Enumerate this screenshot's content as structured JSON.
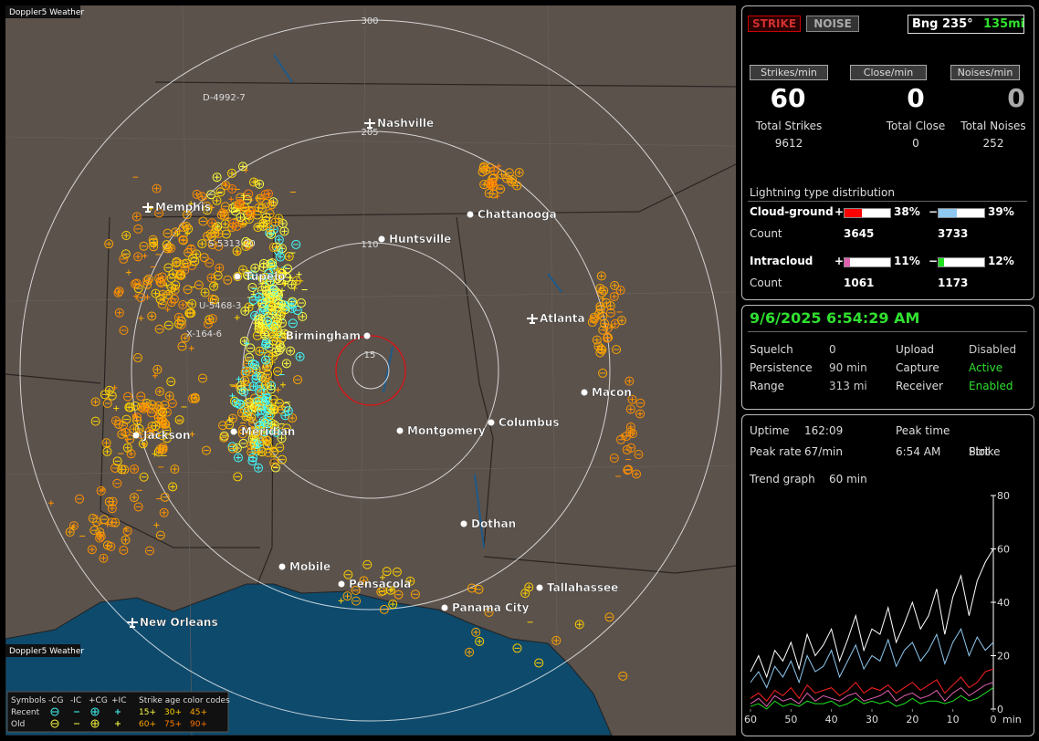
{
  "app_title": "Doppler5 Weather",
  "map": {
    "range_labels": [
      "300",
      "205",
      "110",
      "15"
    ],
    "cities": [
      {
        "name": "Nashville",
        "airport": true
      },
      {
        "name": "Memphis",
        "airport": true
      },
      {
        "name": "Atlanta",
        "airport": true
      },
      {
        "name": "New Orleans",
        "airport": true
      },
      {
        "name": "Chattanooga",
        "airport": false
      },
      {
        "name": "Huntsville",
        "airport": false
      },
      {
        "name": "Tupelo",
        "airport": false
      },
      {
        "name": "Birmingham",
        "airport": false
      },
      {
        "name": "Macon",
        "airport": false
      },
      {
        "name": "Columbus",
        "airport": false
      },
      {
        "name": "Montgomery",
        "airport": false
      },
      {
        "name": "Jackson",
        "airport": false
      },
      {
        "name": "Meridian",
        "airport": false
      },
      {
        "name": "Dothan",
        "airport": false
      },
      {
        "name": "Mobile",
        "airport": false
      },
      {
        "name": "Pensacola",
        "airport": false
      },
      {
        "name": "Panama City",
        "airport": false
      },
      {
        "name": "Tallahassee",
        "airport": false
      }
    ],
    "track_labels": [
      "D-4992-7",
      "S-5313-20",
      "U-5468-3",
      "X-164-6"
    ]
  },
  "legend": {
    "symbols_label": "Symbols",
    "columns": [
      "-CG",
      "-IC",
      "+CG",
      "+IC"
    ],
    "age_label": "Strike age color codes",
    "rows": [
      {
        "name": "Recent",
        "ages": [
          "15+",
          "30+",
          "45+"
        ]
      },
      {
        "name": "Old",
        "ages": [
          "60+",
          "75+",
          "90+"
        ]
      }
    ]
  },
  "status": {
    "buttons": [
      "STRIKE",
      "NOISE"
    ],
    "bearing": "Bng 235°",
    "distance": "135mi"
  },
  "rates": [
    {
      "label": "Strikes/min",
      "value": 60,
      "total_label": "Total Strikes",
      "total": 9612
    },
    {
      "label": "Close/min",
      "value": 0,
      "total_label": "Total Close",
      "total": 0
    },
    {
      "label": "Noises/min",
      "value": 0,
      "total_label": "Total Noises",
      "total": 252
    }
  ],
  "distribution": {
    "title": "Lightning type distribution",
    "count_label": "Count",
    "types": [
      {
        "name": "Cloud-ground",
        "plus": {
          "sign": "+",
          "percent": 38,
          "percent_label": "38%",
          "count": 3645,
          "color": "#ff0000"
        },
        "minus": {
          "sign": "−",
          "percent": 39,
          "percent_label": "39%",
          "count": 3733,
          "color": "#8ec8f0"
        }
      },
      {
        "name": "Intracloud",
        "plus": {
          "sign": "+",
          "percent": 11,
          "percent_label": "11%",
          "count": 1061,
          "color": "#e060b0"
        },
        "minus": {
          "sign": "−",
          "percent": 12,
          "percent_label": "12%",
          "count": 1173,
          "color": "#20e020"
        }
      }
    ]
  },
  "clock": "9/6/2025 6:54:29 AM",
  "settings": [
    {
      "label": "Squelch",
      "value": 0
    },
    {
      "label": "Persistence",
      "value": "90 min"
    },
    {
      "label": "Range",
      "value": "313 mi"
    },
    {
      "label": "Upload",
      "value": "Disabled"
    },
    {
      "label": "Capture",
      "value": "Active"
    },
    {
      "label": "Receiver",
      "value": "Enabled"
    }
  ],
  "stats": [
    {
      "label": "Uptime",
      "value": "162:09"
    },
    {
      "label": "Peak rate",
      "value": "67/min"
    },
    {
      "label": "Peak time",
      "value": "6:54 AM"
    },
    {
      "label": "Plot",
      "value": "Strike"
    },
    {
      "label": "Trend graph",
      "value": "60 min"
    }
  ],
  "chart_data": {
    "type": "line",
    "xlabel": "min",
    "x": [
      60,
      58,
      56,
      54,
      52,
      50,
      48,
      46,
      44,
      42,
      40,
      38,
      36,
      34,
      32,
      30,
      28,
      26,
      24,
      22,
      20,
      18,
      16,
      14,
      12,
      10,
      8,
      6,
      4,
      2,
      0
    ],
    "xlim": [
      60,
      0
    ],
    "xticks": [
      60,
      50,
      40,
      30,
      20,
      10,
      0
    ],
    "ylim": [
      0,
      80
    ],
    "yticks": [
      0,
      20,
      40,
      60,
      80
    ],
    "series": [
      {
        "color": "#ffffff",
        "values": [
          14,
          20,
          12,
          22,
          18,
          25,
          15,
          28,
          20,
          24,
          30,
          18,
          26,
          35,
          22,
          30,
          28,
          38,
          25,
          32,
          40,
          30,
          35,
          45,
          28,
          42,
          50,
          35,
          48,
          55,
          60
        ]
      },
      {
        "color": "#8ec8f0",
        "values": [
          10,
          14,
          8,
          16,
          12,
          18,
          10,
          20,
          14,
          16,
          22,
          12,
          18,
          24,
          15,
          20,
          18,
          26,
          16,
          22,
          25,
          18,
          22,
          28,
          17,
          25,
          30,
          20,
          27,
          22,
          25
        ]
      },
      {
        "color": "#ff2020",
        "values": [
          4,
          6,
          3,
          7,
          5,
          8,
          4,
          9,
          6,
          7,
          8,
          5,
          7,
          10,
          6,
          8,
          7,
          9,
          6,
          8,
          10,
          7,
          9,
          11,
          6,
          9,
          12,
          8,
          10,
          14,
          15
        ]
      },
      {
        "color": "#e060b0",
        "values": [
          2,
          4,
          1,
          5,
          3,
          4,
          2,
          6,
          3,
          5,
          4,
          3,
          5,
          6,
          3,
          4,
          5,
          7,
          3,
          5,
          6,
          4,
          5,
          7,
          3,
          6,
          8,
          5,
          7,
          9,
          10
        ]
      },
      {
        "color": "#20e020",
        "values": [
          1,
          2,
          0,
          3,
          1,
          2,
          1,
          3,
          2,
          2,
          3,
          1,
          2,
          4,
          2,
          3,
          2,
          3,
          1,
          2,
          4,
          2,
          3,
          3,
          2,
          3,
          5,
          3,
          4,
          6,
          8
        ]
      }
    ]
  }
}
